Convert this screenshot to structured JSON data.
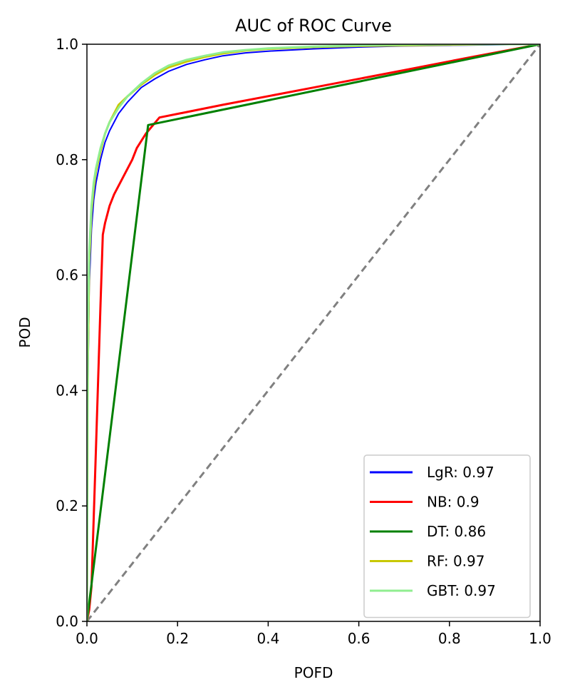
{
  "chart_data": {
    "type": "line",
    "title": "AUC of ROC Curve",
    "xlabel": "POFD",
    "ylabel": "POD",
    "xlim": [
      0.0,
      1.0
    ],
    "ylim": [
      0.0,
      1.0
    ],
    "xticks": [
      "0.0",
      "0.2",
      "0.4",
      "0.6",
      "0.8",
      "1.0"
    ],
    "yticks": [
      "0.0",
      "0.2",
      "0.4",
      "0.6",
      "0.8",
      "1.0"
    ],
    "grid": false,
    "legend_position": "bottom-right",
    "reference_line": {
      "x": [
        0,
        1
      ],
      "y": [
        0,
        1
      ],
      "color": "#808080",
      "style": "dashed"
    },
    "series": [
      {
        "name": "LgR: 0.97",
        "color": "#0000ff",
        "x": [
          0,
          0.002,
          0.005,
          0.01,
          0.015,
          0.02,
          0.03,
          0.04,
          0.05,
          0.07,
          0.09,
          0.12,
          0.15,
          0.18,
          0.22,
          0.26,
          0.3,
          0.35,
          0.4,
          0.5,
          0.6,
          0.7,
          0.8,
          0.9,
          1.0
        ],
        "y": [
          0,
          0.4,
          0.58,
          0.68,
          0.73,
          0.76,
          0.8,
          0.83,
          0.85,
          0.88,
          0.9,
          0.925,
          0.94,
          0.953,
          0.965,
          0.973,
          0.98,
          0.985,
          0.988,
          0.992,
          0.995,
          0.997,
          0.998,
          0.999,
          1.0
        ]
      },
      {
        "name": "NB: 0.9",
        "color": "#ff0000",
        "x": [
          0,
          0.005,
          0.01,
          0.02,
          0.03,
          0.035,
          0.04,
          0.05,
          0.06,
          0.08,
          0.1,
          0.11,
          0.13,
          0.16,
          0.3,
          0.5,
          0.7,
          0.85,
          1.0
        ],
        "y": [
          0,
          0.02,
          0.06,
          0.3,
          0.55,
          0.67,
          0.69,
          0.72,
          0.74,
          0.77,
          0.8,
          0.82,
          0.845,
          0.873,
          0.895,
          0.925,
          0.955,
          0.978,
          1.0
        ]
      },
      {
        "name": "DT: 0.86",
        "color": "#008000",
        "x": [
          0,
          0.135,
          1.0
        ],
        "y": [
          0,
          0.86,
          1.0
        ]
      },
      {
        "name": "RF: 0.97",
        "color": "#c8c800",
        "x": [
          0,
          0.002,
          0.005,
          0.01,
          0.015,
          0.02,
          0.03,
          0.04,
          0.05,
          0.07,
          0.09,
          0.12,
          0.15,
          0.18,
          0.22,
          0.26,
          0.3,
          0.35,
          0.4,
          0.5,
          0.6,
          0.7,
          0.8,
          0.9,
          1.0
        ],
        "y": [
          0,
          0.45,
          0.62,
          0.71,
          0.75,
          0.78,
          0.815,
          0.845,
          0.865,
          0.895,
          0.91,
          0.93,
          0.947,
          0.96,
          0.97,
          0.978,
          0.984,
          0.989,
          0.992,
          0.995,
          0.997,
          0.998,
          0.999,
          1.0,
          1.0
        ]
      },
      {
        "name": "GBT: 0.97",
        "color": "#90ee90",
        "x": [
          0,
          0.002,
          0.005,
          0.01,
          0.015,
          0.02,
          0.03,
          0.04,
          0.05,
          0.07,
          0.09,
          0.12,
          0.15,
          0.18,
          0.22,
          0.26,
          0.3,
          0.35,
          0.4,
          0.5,
          0.6,
          0.7,
          0.8,
          0.9,
          1.0
        ],
        "y": [
          0,
          0.5,
          0.64,
          0.72,
          0.76,
          0.785,
          0.82,
          0.845,
          0.865,
          0.89,
          0.91,
          0.932,
          0.95,
          0.963,
          0.973,
          0.98,
          0.986,
          0.99,
          0.993,
          0.996,
          0.998,
          0.999,
          1.0,
          1.0,
          1.0
        ]
      }
    ]
  }
}
